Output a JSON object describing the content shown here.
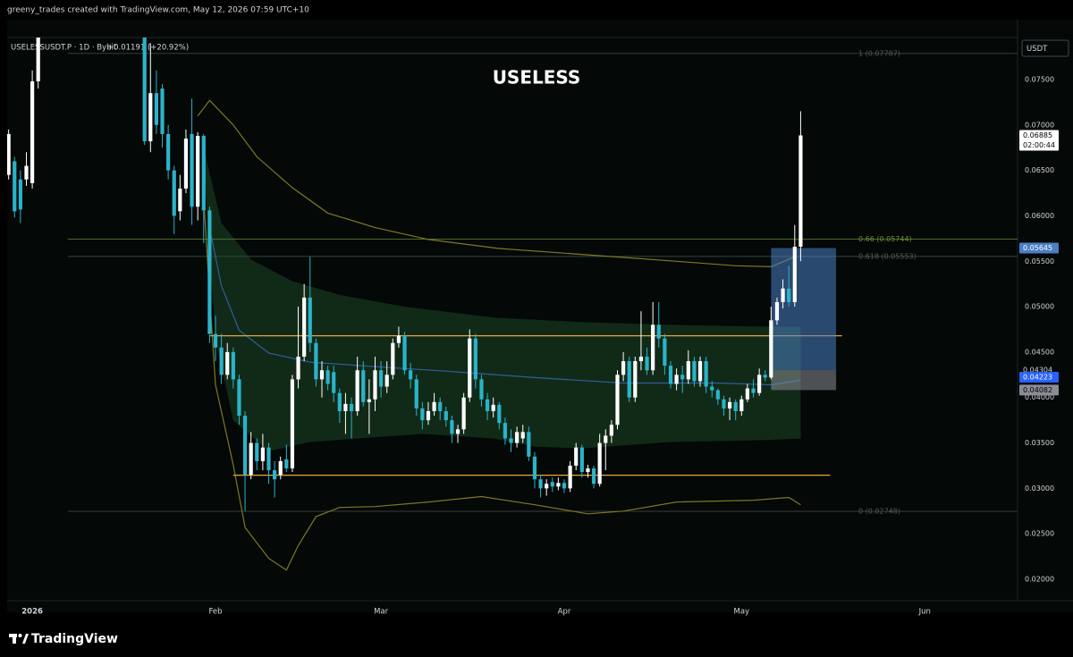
{
  "header": {
    "text": "greeny_trades created with TradingView.com, May 12, 2026 07:59 UTC+10"
  },
  "footer": {
    "brand": "TradingView"
  },
  "chart_data": {
    "type": "candlestick",
    "title": "USELESS",
    "symbol": "USELESSUSDT.P · 1D · Bybit",
    "change": "+0.01191 (+20.92%)",
    "currency": "USDT",
    "countdown": "02:00:44",
    "ylim": [
      0.01764,
      0.07962
    ],
    "yticks": [
      {
        "value": 0.075,
        "label": "0.07500"
      },
      {
        "value": 0.07,
        "label": "0.07000"
      },
      {
        "value": 0.065,
        "label": "0.06500"
      },
      {
        "value": 0.06,
        "label": "0.06000"
      },
      {
        "value": 0.055,
        "label": "0.05500"
      },
      {
        "value": 0.05,
        "label": "0.05000"
      },
      {
        "value": 0.045,
        "label": "0.04500"
      },
      {
        "value": 0.04,
        "label": "0.04000"
      },
      {
        "value": 0.035,
        "label": "0.03500"
      },
      {
        "value": 0.03,
        "label": "0.03000"
      },
      {
        "value": 0.025,
        "label": "0.02500"
      },
      {
        "value": 0.02,
        "label": "0.02000"
      }
    ],
    "xlim": [
      -0.25,
      170.7
    ],
    "xticks": [
      {
        "value": 4,
        "label": "2026"
      },
      {
        "value": 35,
        "label": "Feb"
      },
      {
        "value": 63,
        "label": "Mar"
      },
      {
        "value": 94,
        "label": "Apr"
      },
      {
        "value": 124,
        "label": "May"
      },
      {
        "value": 155,
        "label": "Jun"
      }
    ],
    "up_color": "#ffffff",
    "down_color": "#2bb3c9",
    "candles": {
      "open": [
        0.0645,
        0.066,
        0.064,
        0.064,
        0.0636,
        0.0748,
        null,
        null,
        null,
        null,
        null,
        null,
        null,
        null,
        null,
        null,
        null,
        null,
        null,
        null,
        null,
        null,
        null,
        0.08,
        0.0682,
        0.0735,
        0.074,
        0.069,
        0.065,
        0.0605,
        0.063,
        0.069,
        0.061,
        0.0688,
        0.0606,
        0.047,
        0.0455,
        0.0425,
        0.045,
        0.042,
        0.038,
        0.0315,
        0.035,
        0.033,
        0.0345,
        0.032,
        0.0315,
        0.0332,
        0.0322,
        0.042,
        0.0445,
        0.051,
        0.046,
        0.042,
        0.043,
        0.0428,
        0.0405,
        0.0385,
        0.0393,
        0.0385,
        0.043,
        0.0395,
        0.0398,
        0.043,
        0.0412,
        0.0425,
        0.046,
        0.0468,
        0.043,
        0.042,
        0.0388,
        0.0375,
        0.0385,
        0.0395,
        0.0385,
        0.0375,
        0.036,
        0.0365,
        0.04,
        0.0465,
        0.042,
        0.0398,
        0.0385,
        0.0392,
        0.0372,
        0.0355,
        0.035,
        0.0355,
        0.0362,
        0.0335,
        0.031,
        0.03,
        0.0307,
        0.0302,
        0.0306,
        0.03,
        0.0325,
        0.0345,
        0.0318,
        0.0322,
        0.0305,
        0.035,
        0.0358,
        0.037,
        0.0425,
        0.044,
        0.04,
        0.044,
        0.0445,
        0.043,
        0.048,
        0.0465,
        0.0435,
        0.0415,
        0.0425,
        0.042,
        0.044,
        0.0418,
        0.044,
        0.0412,
        0.0408,
        0.0398,
        0.0388,
        0.0395,
        0.0385,
        0.0398,
        0.041,
        0.0405,
        0.0425,
        0.0422,
        0.0485,
        0.0505,
        0.052,
        0.0505,
        0.0566
      ],
      "high": [
        0.0695,
        0.0665,
        0.065,
        0.067,
        0.076,
        0.082,
        null,
        null,
        null,
        null,
        null,
        null,
        null,
        null,
        null,
        null,
        null,
        null,
        null,
        null,
        null,
        null,
        null,
        0.081,
        0.079,
        0.076,
        0.0745,
        0.07,
        0.0655,
        0.0645,
        0.0695,
        0.0729,
        0.0692,
        0.069,
        0.061,
        0.049,
        0.047,
        0.046,
        0.0455,
        0.0425,
        0.0385,
        0.0362,
        0.0355,
        0.036,
        0.035,
        0.033,
        0.0335,
        0.0348,
        0.0425,
        0.05,
        0.0525,
        0.0555,
        0.0465,
        0.044,
        0.0435,
        0.0435,
        0.041,
        0.0405,
        0.04,
        0.0445,
        0.044,
        0.042,
        0.0445,
        0.044,
        0.044,
        0.0465,
        0.0478,
        0.0472,
        0.0438,
        0.0425,
        0.0395,
        0.0395,
        0.0405,
        0.04,
        0.039,
        0.038,
        0.037,
        0.0405,
        0.0475,
        0.047,
        0.0425,
        0.0405,
        0.04,
        0.0395,
        0.0378,
        0.0365,
        0.0368,
        0.037,
        0.0368,
        0.034,
        0.0315,
        0.031,
        0.0312,
        0.0312,
        0.031,
        0.033,
        0.035,
        0.0348,
        0.0326,
        0.0325,
        0.036,
        0.0365,
        0.0375,
        0.043,
        0.045,
        0.0445,
        0.0445,
        0.0495,
        0.0455,
        0.0505,
        0.0505,
        0.047,
        0.044,
        0.0432,
        0.0435,
        0.0452,
        0.0445,
        0.0445,
        0.0445,
        0.0418,
        0.041,
        0.0402,
        0.04,
        0.0398,
        0.0402,
        0.0415,
        0.042,
        0.0432,
        0.043,
        0.05,
        0.051,
        0.053,
        0.0545,
        0.059,
        0.0715
      ],
      "low": [
        0.064,
        0.0598,
        0.0592,
        0.0633,
        0.063,
        0.074,
        null,
        null,
        null,
        null,
        null,
        null,
        null,
        null,
        null,
        null,
        null,
        null,
        null,
        null,
        null,
        null,
        null,
        0.0678,
        0.067,
        0.069,
        0.0675,
        0.064,
        0.058,
        0.0595,
        0.0625,
        0.059,
        0.0595,
        0.057,
        0.046,
        0.044,
        0.0415,
        0.042,
        0.041,
        0.037,
        0.0275,
        0.031,
        0.032,
        0.032,
        0.0305,
        0.029,
        0.031,
        0.0318,
        0.0318,
        0.041,
        0.044,
        0.045,
        0.0412,
        0.04,
        0.0408,
        0.0395,
        0.0372,
        0.036,
        0.0355,
        0.038,
        0.039,
        0.036,
        0.0385,
        0.04,
        0.0405,
        0.042,
        0.0455,
        0.0425,
        0.041,
        0.038,
        0.0365,
        0.037,
        0.038,
        0.0375,
        0.0368,
        0.035,
        0.035,
        0.036,
        0.0395,
        0.041,
        0.039,
        0.0375,
        0.0378,
        0.0365,
        0.0348,
        0.034,
        0.0345,
        0.035,
        0.033,
        0.03,
        0.029,
        0.0292,
        0.0296,
        0.0298,
        0.0295,
        0.0296,
        0.032,
        0.0312,
        0.0312,
        0.03,
        0.0302,
        0.032,
        0.035,
        0.0365,
        0.0418,
        0.0395,
        0.0395,
        0.043,
        0.0425,
        0.0425,
        0.0455,
        0.0425,
        0.041,
        0.0408,
        0.0405,
        0.0415,
        0.0412,
        0.0412,
        0.0405,
        0.04,
        0.0392,
        0.038,
        0.0375,
        0.0375,
        0.038,
        0.0395,
        0.04,
        0.0402,
        0.0418,
        0.042,
        0.048,
        0.0498,
        0.05,
        0.05,
        0.055
      ],
      "close": [
        0.069,
        0.0605,
        0.0607,
        0.0655,
        0.0748,
        0.08,
        null,
        null,
        null,
        null,
        null,
        null,
        null,
        null,
        null,
        null,
        null,
        null,
        null,
        null,
        null,
        null,
        null,
        0.0682,
        0.0735,
        0.07,
        0.069,
        0.065,
        0.06,
        0.063,
        0.0685,
        0.061,
        0.0688,
        0.0606,
        0.047,
        0.0455,
        0.0425,
        0.045,
        0.042,
        0.038,
        0.0315,
        0.035,
        0.033,
        0.0345,
        0.032,
        0.031,
        0.033,
        0.0322,
        0.042,
        0.0445,
        0.051,
        0.046,
        0.042,
        0.043,
        0.0415,
        0.0405,
        0.0385,
        0.0393,
        0.0385,
        0.043,
        0.0395,
        0.0398,
        0.043,
        0.0412,
        0.0425,
        0.046,
        0.0468,
        0.043,
        0.042,
        0.0388,
        0.0375,
        0.0385,
        0.0395,
        0.0385,
        0.0375,
        0.036,
        0.0365,
        0.04,
        0.0465,
        0.042,
        0.0398,
        0.0385,
        0.0392,
        0.0372,
        0.0355,
        0.035,
        0.0362,
        0.0362,
        0.0335,
        0.031,
        0.03,
        0.0305,
        0.0302,
        0.0306,
        0.03,
        0.0325,
        0.0345,
        0.0318,
        0.0322,
        0.0305,
        0.035,
        0.0358,
        0.037,
        0.0425,
        0.044,
        0.04,
        0.044,
        0.0445,
        0.043,
        0.048,
        0.0465,
        0.0435,
        0.0415,
        0.0425,
        0.042,
        0.044,
        0.0418,
        0.044,
        0.0412,
        0.0408,
        0.0398,
        0.0388,
        0.0395,
        0.0385,
        0.0398,
        0.041,
        0.0405,
        0.0425,
        0.0422,
        0.0485,
        0.0505,
        0.052,
        0.0505,
        0.0566,
        0.06885
      ]
    },
    "bands": [
      {
        "color": "#7d7a22",
        "x": [
          32,
          34,
          38,
          42,
          48,
          54,
          62,
          71,
          83,
          98,
          113,
          123,
          129,
          133
        ],
        "values": [
          0.071,
          0.0727,
          0.07,
          0.0665,
          0.0631,
          0.0603,
          0.0587,
          0.0574,
          0.0564,
          0.0557,
          0.055,
          0.0545,
          0.0544,
          0.0555
        ]
      },
      {
        "color": "#7d7a22",
        "x": [
          33,
          34,
          35,
          38,
          40,
          44,
          47,
          49,
          52,
          56,
          62,
          71,
          80,
          89,
          98,
          104,
          113,
          126,
          132,
          134
        ],
        "values": [
          0.062,
          0.0513,
          0.0414,
          0.0326,
          0.0257,
          0.0223,
          0.021,
          0.0237,
          0.0269,
          0.0279,
          0.028,
          0.0285,
          0.0291,
          0.0282,
          0.0272,
          0.0275,
          0.0285,
          0.0287,
          0.029,
          0.0282
        ]
      }
    ],
    "ma": {
      "color": "#2d5f9a",
      "label_color": "#2962ff",
      "x": [
        34,
        36,
        39,
        44,
        51,
        62,
        74,
        89,
        104,
        120,
        129,
        134
      ],
      "values": [
        0.0587,
        0.0523,
        0.0474,
        0.0449,
        0.0439,
        0.0434,
        0.0429,
        0.0422,
        0.0416,
        0.0416,
        0.0414,
        0.0419
      ],
      "last": 0.04223
    },
    "cloud": {
      "color": "#16361f",
      "upper": {
        "x": [
          33,
          36,
          41,
          48,
          56,
          67,
          82,
          97,
          112,
          127,
          134
        ],
        "values": [
          0.0675,
          0.0592,
          0.0552,
          0.0528,
          0.0513,
          0.05,
          0.0488,
          0.0483,
          0.048,
          0.0478,
          0.0478
        ]
      },
      "lower": {
        "x": [
          33,
          35,
          38,
          44,
          51,
          59,
          70,
          82,
          89,
          97,
          112,
          127,
          134
        ],
        "values": [
          0.0665,
          0.0464,
          0.0375,
          0.0341,
          0.0351,
          0.0355,
          0.036,
          0.0355,
          0.0346,
          0.0344,
          0.0351,
          0.0353,
          0.0355
        ]
      }
    },
    "levels": [
      {
        "color": "#e8a33d",
        "value": 0.0468
      },
      {
        "color": "#e8a33d",
        "value": 0.03145
      }
    ],
    "fib": [
      {
        "label": "1 (0.07787)",
        "value": 0.07787,
        "color": "#3a3d3a"
      },
      {
        "label": "0.66 (0.05744)",
        "value": 0.05744,
        "color": "#4d6a2a"
      },
      {
        "label": "0.618 (0.05553)",
        "value": 0.05553,
        "color": "#2e4a3a"
      },
      {
        "label": "0 (0.02748)",
        "value": 0.02748,
        "color": "#3a3d3a"
      }
    ],
    "position": {
      "target": 0.05645,
      "entry": 0.04304,
      "stop": 0.04082,
      "profit_color": "#4a7fc4",
      "loss_color": "#8a8d95"
    }
  }
}
